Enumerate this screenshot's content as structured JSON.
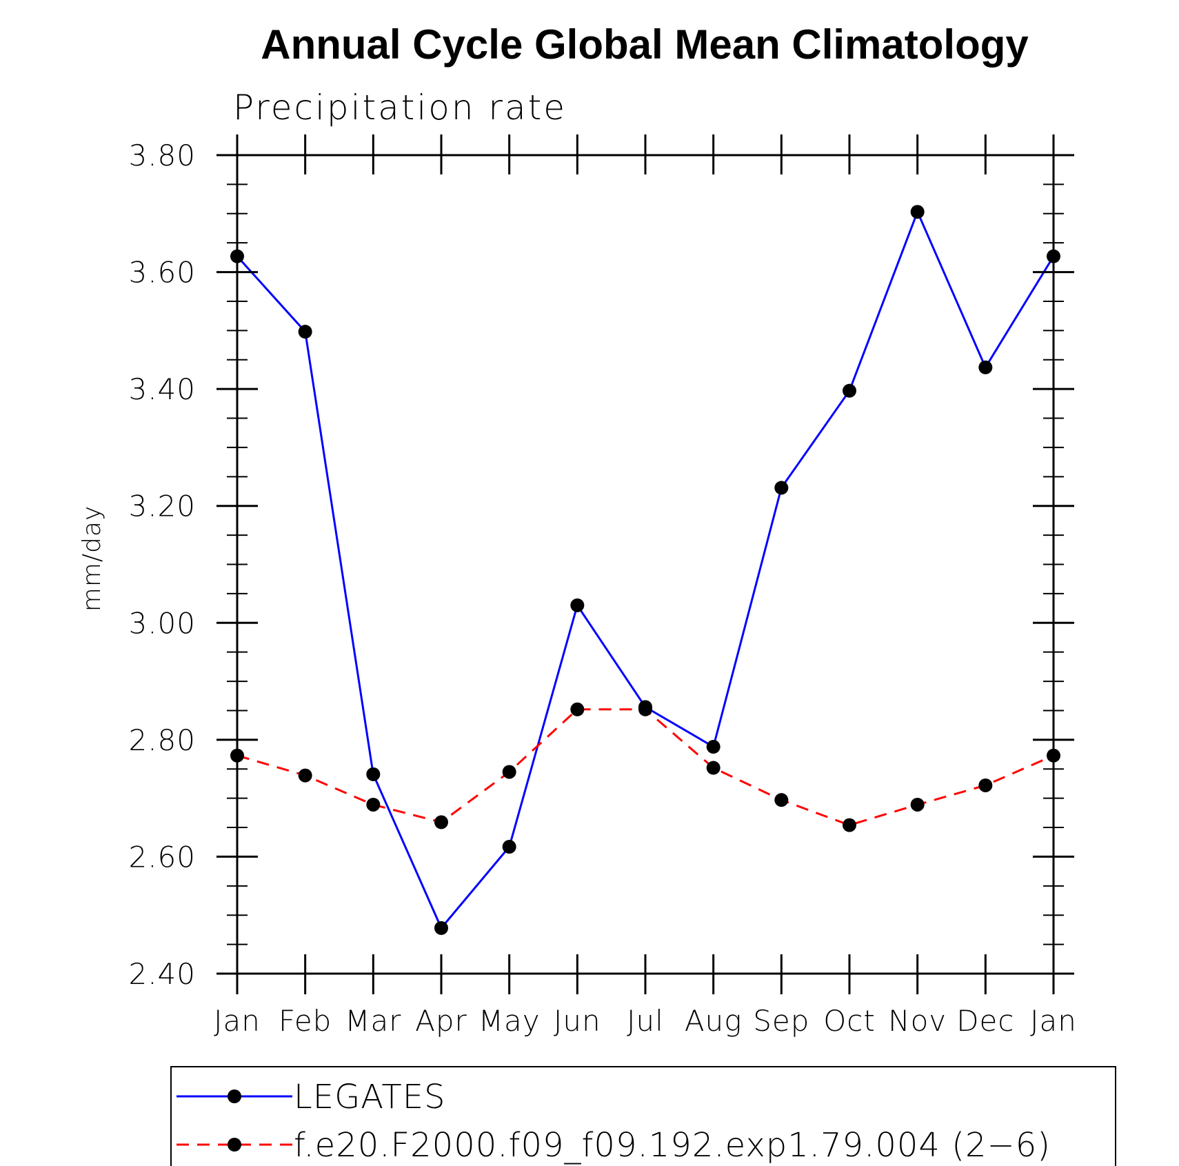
{
  "chart_data": {
    "type": "line",
    "title": "Annual Cycle Global Mean Climatology",
    "subtitle": "Precipitation rate",
    "ylabel": "mm/day",
    "xlabel": "",
    "categories": [
      "Jan",
      "Feb",
      "Mar",
      "Apr",
      "May",
      "Jun",
      "Jul",
      "Aug",
      "Sep",
      "Oct",
      "Nov",
      "Dec",
      "Jan"
    ],
    "ylim": [
      2.4,
      3.8
    ],
    "yticks": [
      "2.40",
      "2.60",
      "2.80",
      "3.00",
      "3.20",
      "3.40",
      "3.60",
      "3.80"
    ],
    "ytick_values": [
      2.4,
      2.6,
      2.8,
      3.0,
      3.2,
      3.4,
      3.6,
      3.8
    ],
    "minor_tick_step": 0.05,
    "grid": false,
    "legend_position": "bottom",
    "series": [
      {
        "name": "LEGATES",
        "color": "#0000ff",
        "line_style": "solid",
        "marker": "filled-circle",
        "values": [
          3.627,
          3.498,
          2.741,
          2.478,
          2.617,
          3.03,
          2.856,
          2.788,
          3.231,
          3.397,
          3.703,
          3.437,
          3.627
        ]
      },
      {
        "name": "f.e20.F2000.f09_f09.192.exp1.79.004 (2−6)",
        "color": "#ff0000",
        "line_style": "dashed",
        "marker": "filled-circle",
        "values": [
          2.773,
          2.739,
          2.689,
          2.659,
          2.745,
          2.852,
          2.852,
          2.752,
          2.697,
          2.654,
          2.689,
          2.722,
          2.773
        ]
      }
    ]
  }
}
